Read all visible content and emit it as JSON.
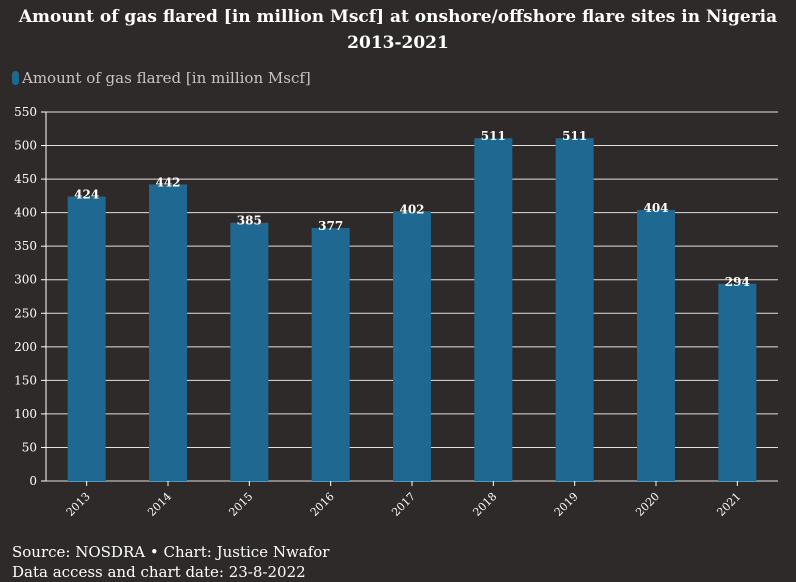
{
  "colors": {
    "background": "#2f2a2a",
    "bar": "#1f6891",
    "gridline": "#ffffff",
    "text": "#ffffff",
    "legend_text": "#c9c4c4"
  },
  "title_line1": "Amount of gas flared [in million Mscf] at onshore/offshore flare sites in Nigeria",
  "title_line2": "2013-2021",
  "footer": {
    "source": "Source: NOSDRA • Chart: Justice Nwafor",
    "date": "Data access and chart date: 23-8-2022"
  },
  "chart_data": {
    "type": "bar",
    "title": "Amount of gas flared [in million Mscf] at onshore/offshore flare sites in Nigeria 2013-2021",
    "categories": [
      "2013",
      "2014",
      "2015",
      "2016",
      "2017",
      "2018",
      "2019",
      "2020",
      "2021"
    ],
    "series": [
      {
        "name": "Amount of gas flared [in million Mscf]",
        "values": [
          424,
          442,
          385,
          377,
          402,
          511,
          511,
          404,
          294
        ]
      }
    ],
    "ylim": [
      0,
      550
    ],
    "yticks": [
      0,
      50,
      100,
      150,
      200,
      250,
      300,
      350,
      400,
      450,
      500,
      550
    ],
    "grid": true,
    "legend": "top-left",
    "data_labels": true
  }
}
